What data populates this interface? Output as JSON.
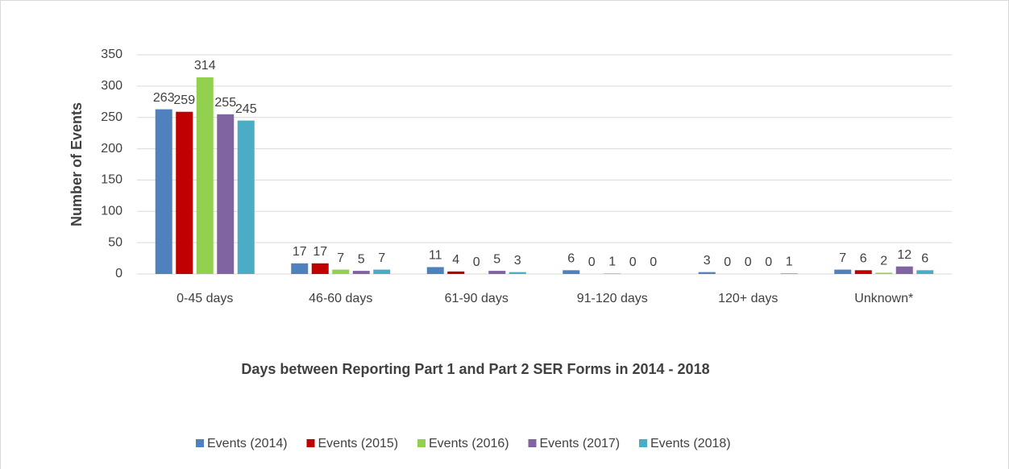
{
  "chart_data": {
    "type": "bar",
    "x_label": "Days between Reporting Part 1 and Part 2 SER Forms in 2014 - 2018",
    "y_label": "Number of Events",
    "categories": [
      "0-45 days",
      "46-60 days",
      "61-90 days",
      "91-120 days",
      "120+ days",
      "Unknown*"
    ],
    "series": [
      {
        "name": "Events (2014)",
        "color": "#4f81bd",
        "values": [
          263,
          17,
          11,
          6,
          3,
          7
        ]
      },
      {
        "name": "Events (2015)",
        "color": "#c00000",
        "values": [
          259,
          17,
          4,
          0,
          0,
          6
        ]
      },
      {
        "name": "Events (2016)",
        "color": "#92d050",
        "values": [
          314,
          7,
          0,
          1,
          0,
          2
        ]
      },
      {
        "name": "Events (2017)",
        "color": "#8064a2",
        "values": [
          255,
          5,
          5,
          0,
          0,
          12
        ]
      },
      {
        "name": "Events (2018)",
        "color": "#4bacc6",
        "values": [
          245,
          7,
          3,
          0,
          1,
          6
        ]
      }
    ],
    "ylim": [
      0,
      350
    ],
    "yticks": [
      0,
      50,
      100,
      150,
      200,
      250,
      300,
      350
    ],
    "grid": true,
    "legend": "bottom"
  }
}
